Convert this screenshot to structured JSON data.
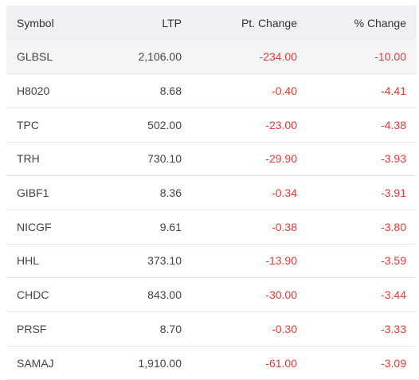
{
  "table": {
    "headers": {
      "symbol": "Symbol",
      "ltp": "LTP",
      "pt_change": "Pt. Change",
      "pct_change": "% Change"
    },
    "rows": [
      {
        "symbol": "GLBSL",
        "ltp": "2,106.00",
        "pt_change": "-234.00",
        "pct_change": "-10.00"
      },
      {
        "symbol": "H8020",
        "ltp": "8.68",
        "pt_change": "-0.40",
        "pct_change": "-4.41"
      },
      {
        "symbol": "TPC",
        "ltp": "502.00",
        "pt_change": "-23.00",
        "pct_change": "-4.38"
      },
      {
        "symbol": "TRH",
        "ltp": "730.10",
        "pt_change": "-29.90",
        "pct_change": "-3.93"
      },
      {
        "symbol": "GIBF1",
        "ltp": "8.36",
        "pt_change": "-0.34",
        "pct_change": "-3.91"
      },
      {
        "symbol": "NICGF",
        "ltp": "9.61",
        "pt_change": "-0.38",
        "pct_change": "-3.80"
      },
      {
        "symbol": "HHL",
        "ltp": "373.10",
        "pt_change": "-13.90",
        "pct_change": "-3.59"
      },
      {
        "symbol": "CHDC",
        "ltp": "843.00",
        "pt_change": "-30.00",
        "pct_change": "-3.44"
      },
      {
        "symbol": "PRSF",
        "ltp": "8.70",
        "pt_change": "-0.30",
        "pct_change": "-3.33"
      },
      {
        "symbol": "SAMAJ",
        "ltp": "1,910.00",
        "pt_change": "-61.00",
        "pct_change": "-3.09"
      }
    ]
  },
  "colors": {
    "negative": "#e53935",
    "header_bg": "#eef0f3",
    "shaded_row_bg": "#f4f5f7"
  }
}
